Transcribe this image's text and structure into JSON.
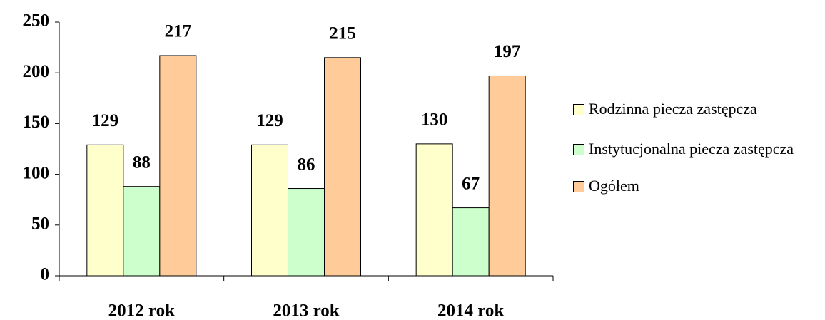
{
  "chart_data": {
    "type": "bar",
    "categories": [
      "2012 rok",
      "2013 rok",
      "2014 rok"
    ],
    "series": [
      {
        "name": "Rodzinna piecza zastępcza",
        "color": "#ffffcc",
        "values": [
          129,
          129,
          130
        ]
      },
      {
        "name": "Instytucjonalna piecza zastępcza",
        "color": "#ccffcc",
        "values": [
          88,
          86,
          67
        ]
      },
      {
        "name": "Ogółem",
        "color": "#ffcc99",
        "values": [
          217,
          215,
          197
        ]
      }
    ],
    "ylim": [
      0,
      250
    ],
    "yticks": [
      0,
      50,
      100,
      150,
      200,
      250
    ],
    "legend": "right"
  }
}
